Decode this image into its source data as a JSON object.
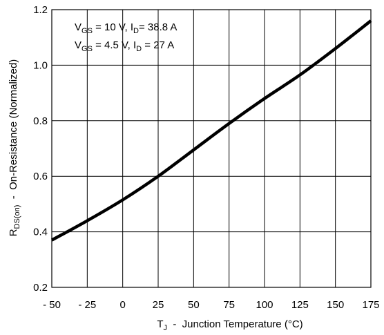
{
  "chart_data": {
    "type": "line",
    "title": "",
    "x_axis": {
      "label_main": "T",
      "label_sub": "J",
      "label_rest": "  -  Junction Temperature (°C)",
      "min": -50,
      "max": 175,
      "ticks": [
        -50,
        -25,
        0,
        25,
        50,
        75,
        100,
        125,
        150,
        175
      ],
      "tick_labels": [
        "- 50",
        "- 25",
        "0",
        "25",
        "50",
        "75",
        "100",
        "125",
        "150",
        "175"
      ]
    },
    "y_axis": {
      "label_main": "R",
      "label_sub": "DS(on)",
      "label_rest": "  -  On-Resistance (Normalized)",
      "min": 0.2,
      "max": 1.2,
      "ticks": [
        0.2,
        0.4,
        0.6,
        0.8,
        1.0,
        1.2
      ],
      "tick_labels": [
        "0.2",
        "0.4",
        "0.6",
        "0.8",
        "1.0",
        "1.2"
      ]
    },
    "grid": true,
    "legend": {
      "placement": "top-left",
      "lines": [
        {
          "p1": "V",
          "s1": "GS",
          "p2": " = 10 V, I",
          "s2": "D",
          "p3": "= 38.8 A"
        },
        {
          "p1": "V",
          "s1": "GS",
          "p2": " = 4.5 V, I",
          "s2": "D",
          "p3": " = 27 A"
        }
      ]
    },
    "series": [
      {
        "x": [
          -50,
          -25,
          0,
          25,
          50,
          75,
          100,
          125,
          150,
          175
        ],
        "y": [
          0.37,
          0.44,
          0.515,
          0.6,
          0.695,
          0.79,
          0.88,
          0.965,
          1.06,
          1.16
        ]
      }
    ]
  }
}
